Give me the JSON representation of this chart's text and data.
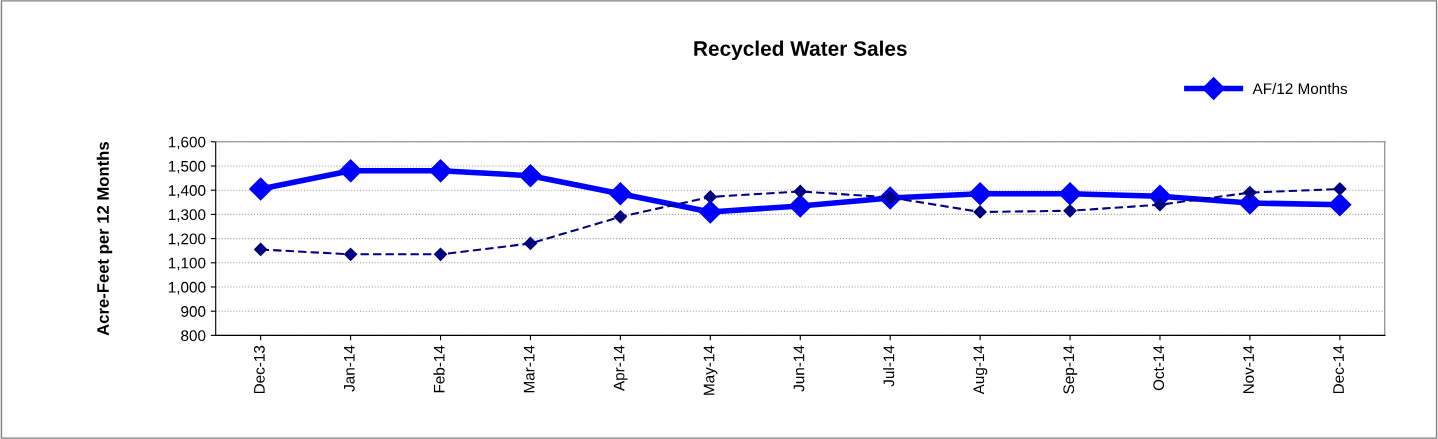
{
  "chart_data": {
    "type": "line",
    "title": "Recycled Water Sales",
    "ylabel": "Acre-Feet per 12 Months",
    "categories": [
      "Dec-13",
      "Jan-14",
      "Feb-14",
      "Mar-14",
      "Apr-14",
      "May-14",
      "Jun-14",
      "Jul-14",
      "Aug-14",
      "Sep-14",
      "Oct-14",
      "Nov-14",
      "Dec-14"
    ],
    "series": [
      {
        "name": "AF/12 Months",
        "color": "#0000ff",
        "line_style": "solid",
        "values": [
          1405,
          1480,
          1480,
          1460,
          1385,
          1310,
          1335,
          1368,
          1385,
          1385,
          1375,
          1347,
          1340
        ]
      },
      {
        "color": "#000080",
        "line_style": "dashed",
        "values": [
          1155,
          1135,
          1135,
          1180,
          1290,
          1372,
          1395,
          1370,
          1310,
          1315,
          1340,
          1390,
          1405
        ]
      }
    ],
    "ylim": [
      800,
      1600
    ],
    "yticks": [
      {
        "value": 800,
        "label": "800"
      },
      {
        "value": 900,
        "label": "900"
      },
      {
        "value": 1000,
        "label": "1,000"
      },
      {
        "value": 1100,
        "label": "1,100"
      },
      {
        "value": 1200,
        "label": "1,200"
      },
      {
        "value": 1300,
        "label": "1,300"
      },
      {
        "value": 1400,
        "label": "1,400"
      },
      {
        "value": 1500,
        "label": "1,500"
      },
      {
        "value": 1600,
        "label": "1,600"
      }
    ],
    "grid": "y",
    "legend": "top right",
    "marker": "diamond"
  }
}
